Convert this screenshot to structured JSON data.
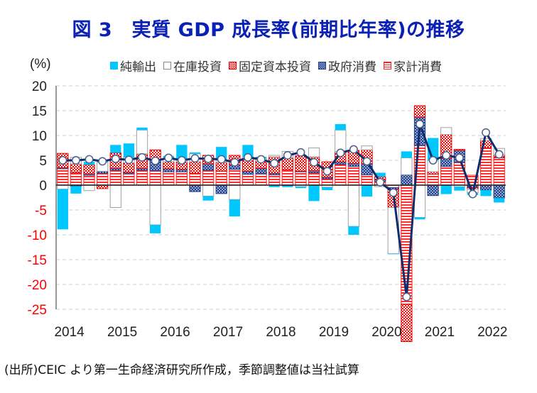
{
  "title": "図 3　実質 GDP 成長率(前期比年率)の推移",
  "unit_label": "(%)",
  "footer": "(出所)CEIC より第一生命経済研究所作成，季節調整値は当社試算",
  "legend": [
    {
      "key": "net_exports",
      "label": "純輸出"
    },
    {
      "key": "inventory",
      "label": "在庫投資"
    },
    {
      "key": "fixed_investment",
      "label": "固定資本投資"
    },
    {
      "key": "government",
      "label": "政府消費"
    },
    {
      "key": "household",
      "label": "家計消費"
    }
  ],
  "colors": {
    "title": "#0b21b5",
    "net_exports": "#00c8ff",
    "inventory_border": "#a0a0a0",
    "fixed_investment": "#ff0000",
    "government": "#1f3f8f",
    "household": "#ff2020",
    "gdp_line": "#0f2d6b",
    "negative_tick": "#ff0000"
  },
  "chart_data": {
    "type": "bar",
    "subtype": "stacked bar + line",
    "title": "実質 GDP 成長率(前期比年率)の推移",
    "ylabel": "(%)",
    "xlabel": "",
    "ylim": [
      -25,
      20
    ],
    "yticks": [
      20,
      15,
      10,
      5,
      0,
      -5,
      -10,
      -15,
      -20,
      -25
    ],
    "grid": true,
    "legend_position": "top",
    "x_tick_labels": [
      "2014",
      "2015",
      "2016",
      "2017",
      "2018",
      "2019",
      "2020",
      "2021",
      "2022"
    ],
    "categories": [
      "2014Q1",
      "2014Q2",
      "2014Q3",
      "2014Q4",
      "2015Q1",
      "2015Q2",
      "2015Q3",
      "2015Q4",
      "2016Q1",
      "2016Q2",
      "2016Q3",
      "2016Q4",
      "2017Q1",
      "2017Q2",
      "2017Q3",
      "2017Q4",
      "2018Q1",
      "2018Q2",
      "2018Q3",
      "2018Q4",
      "2019Q1",
      "2019Q2",
      "2019Q3",
      "2019Q4",
      "2020Q1",
      "2020Q2",
      "2020Q3",
      "2020Q4",
      "2021Q1",
      "2021Q2",
      "2021Q3",
      "2021Q4",
      "2022Q1",
      "2022Q2"
    ],
    "series": [
      {
        "name": "家計消費",
        "key": "household",
        "values": [
          3.3,
          2.5,
          2.0,
          2.4,
          3.0,
          2.3,
          3.0,
          2.9,
          2.7,
          2.7,
          2.4,
          3.0,
          2.8,
          3.2,
          2.2,
          2.3,
          2.1,
          3.1,
          2.7,
          2.5,
          1.3,
          4.2,
          3.8,
          2.1,
          0.8,
          -0.5,
          -24.0,
          8.0,
          2.2,
          3.8,
          4.6,
          2.0,
          7.5,
          5.5
        ]
      },
      {
        "name": "政府消費",
        "key": "government",
        "values": [
          0.2,
          -0.2,
          0.3,
          0.4,
          0.4,
          0.3,
          0.4,
          2.3,
          0.6,
          0.5,
          -1.3,
          1.3,
          -1.7,
          0.9,
          0.6,
          1.1,
          0.3,
          -0.1,
          0.1,
          0.4,
          0.3,
          0.5,
          0.6,
          2.2,
          0.3,
          -0.3,
          2.1,
          5.7,
          -2.1,
          1.6,
          2.4,
          -0.5,
          -1.0,
          -2.6
        ]
      },
      {
        "name": "固定資本投資",
        "key": "fixed_investment",
        "values": [
          2.9,
          1.8,
          1.8,
          -0.7,
          3.1,
          1.9,
          2.9,
          1.9,
          1.4,
          1.5,
          2.3,
          1.7,
          1.8,
          1.9,
          2.5,
          1.5,
          3.3,
          2.4,
          3.1,
          2.8,
          3.1,
          2.0,
          2.6,
          2.8,
          0.6,
          -3.7,
          -7.5,
          2.3,
          0.5,
          4.8,
          0.2,
          -0.3,
          1.5,
          0.6
        ]
      },
      {
        "name": "在庫投資",
        "key": "inventory",
        "values": [
          -0.8,
          1.3,
          -1.1,
          1.8,
          -4.5,
          1.1,
          4.8,
          -8.0,
          0.7,
          0.7,
          1.6,
          -2.2,
          0.4,
          -2.9,
          0.4,
          0.5,
          0.3,
          1.3,
          -0.3,
          1.8,
          -0.4,
          4.4,
          -8.3,
          0.8,
          -0.3,
          -9.3,
          3.4,
          -6.5,
          2.3,
          1.4,
          -0.3,
          -0.7,
          0.4,
          1.3
        ]
      },
      {
        "name": "純輸出",
        "key": "net_exports",
        "values": [
          -8.1,
          -1.5,
          0.6,
          0.2,
          1.6,
          2.8,
          0.5,
          -1.7,
          0.5,
          2.7,
          0.3,
          -0.9,
          2.7,
          -3.4,
          2.4,
          0.3,
          -0.4,
          -0.3,
          -0.3,
          -3.2,
          -0.6,
          1.2,
          -1.7,
          -2.3,
          0.8,
          -0.1,
          1.3,
          -0.4,
          4.5,
          -1.8,
          -0.8,
          -0.5,
          -1.2,
          -0.9
        ]
      },
      {
        "name": "実質GDP成長率",
        "key": "gdp",
        "type": "line",
        "values": [
          5.0,
          5.0,
          5.2,
          4.8,
          5.3,
          5.1,
          5.6,
          4.9,
          5.5,
          5.0,
          5.4,
          5.3,
          5.2,
          4.6,
          5.6,
          5.2,
          4.4,
          6.0,
          6.6,
          4.6,
          2.8,
          6.5,
          7.2,
          4.8,
          0.6,
          -1.5,
          -22.5,
          12.3,
          5.0,
          6.0,
          5.5,
          -1.8,
          10.6,
          6.2
        ]
      }
    ]
  }
}
